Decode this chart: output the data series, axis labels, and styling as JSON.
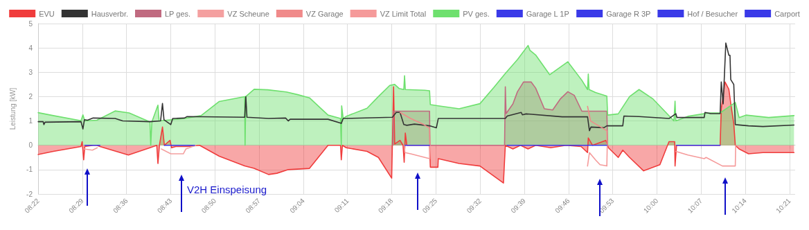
{
  "chart_data": {
    "type": "line",
    "ylabel": "Leistung [kW]",
    "legend": "top",
    "grid": true,
    "marker": "none",
    "line_style": "solid",
    "xlim": [
      8.3667,
      10.365
    ],
    "ylim": [
      -2,
      5
    ],
    "yticks": [
      -2,
      -1,
      0,
      1,
      2,
      3,
      4,
      5
    ],
    "xticks": [
      {
        "value": 8.3667,
        "label": "08:22"
      },
      {
        "value": 8.4833,
        "label": "08:29"
      },
      {
        "value": 8.6,
        "label": "08:36"
      },
      {
        "value": 8.7167,
        "label": "08:43"
      },
      {
        "value": 8.8333,
        "label": "08:50"
      },
      {
        "value": 8.95,
        "label": "08:57"
      },
      {
        "value": 9.0667,
        "label": "09:04"
      },
      {
        "value": 9.1833,
        "label": "09:11"
      },
      {
        "value": 9.3,
        "label": "09:18"
      },
      {
        "value": 9.4167,
        "label": "09:25"
      },
      {
        "value": 9.5333,
        "label": "09:32"
      },
      {
        "value": 9.65,
        "label": "09:39"
      },
      {
        "value": 9.7667,
        "label": "09:46"
      },
      {
        "value": 9.8833,
        "label": "09:53"
      },
      {
        "value": 10.0,
        "label": "10:00"
      },
      {
        "value": 10.1167,
        "label": "10:07"
      },
      {
        "value": 10.2333,
        "label": "10:14"
      },
      {
        "value": 10.35,
        "label": "10:21"
      }
    ],
    "annotations": [
      "V2H Einspeisung"
    ],
    "series": [
      {
        "name": "EVU",
        "type": "area",
        "color": "#f03c3c",
        "x": [
          8.367,
          8.407,
          8.48,
          8.483,
          8.487,
          8.49,
          8.512,
          8.522,
          8.53,
          8.605,
          8.662,
          8.68,
          8.683,
          8.687,
          8.695,
          8.7,
          8.715,
          8.719,
          8.73,
          8.76,
          8.793,
          8.845,
          8.912,
          8.937,
          8.975,
          8.997,
          9.027,
          9.083,
          9.132,
          9.165,
          9.167,
          9.17,
          9.18,
          9.235,
          9.265,
          9.3,
          9.305,
          9.308,
          9.322,
          9.33,
          9.333,
          9.336,
          9.34,
          9.4,
          9.402,
          9.422,
          9.423,
          9.478,
          9.533,
          9.595,
          9.6,
          9.62,
          9.64,
          9.66,
          9.68,
          9.72,
          9.76,
          9.8,
          9.817,
          9.819,
          9.83,
          9.865,
          9.868,
          9.872,
          9.898,
          9.91,
          9.928,
          9.965,
          10.008,
          10.032,
          10.047,
          10.048,
          10.052,
          10.167,
          10.17,
          10.18,
          10.19,
          10.197,
          10.203,
          10.207,
          10.217,
          10.242,
          10.28,
          10.362
        ],
        "values": [
          -0.38,
          -0.25,
          -0.05,
          0.15,
          -0.6,
          -0.05,
          0,
          0,
          -0.05,
          -0.4,
          -0.1,
          0,
          -0.75,
          0,
          0.75,
          0,
          0.2,
          -0.1,
          -0.05,
          -0.05,
          0,
          -0.45,
          -0.85,
          -0.95,
          -1.2,
          -1.15,
          -1.0,
          -0.95,
          0,
          0,
          -0.6,
          0,
          -0.1,
          -0.25,
          -0.5,
          -1.35,
          2.4,
          0.05,
          0.2,
          0,
          -0.7,
          0.5,
          0,
          0,
          -0.9,
          -0.9,
          -0.55,
          -0.75,
          -0.85,
          -1.55,
          0,
          -0.15,
          0,
          -0.15,
          0,
          -0.1,
          0,
          -0.05,
          -0.3,
          0.3,
          0,
          0.2,
          0.1,
          -0.1,
          -0.5,
          -0.2,
          -0.5,
          -1.05,
          -0.8,
          0.15,
          0.15,
          -0.85,
          0,
          0,
          1.5,
          2.6,
          2.3,
          1.5,
          0.9,
          0,
          -0.15,
          -0.35,
          -0.3,
          -0.3
        ]
      },
      {
        "name": "Hausverbr.",
        "color": "#333333",
        "x": [
          8.367,
          8.38,
          8.382,
          8.385,
          8.48,
          8.485,
          8.489,
          8.497,
          8.512,
          8.57,
          8.59,
          8.662,
          8.69,
          8.695,
          8.699,
          8.717,
          8.722,
          8.753,
          8.76,
          8.912,
          8.915,
          8.918,
          8.975,
          9.02,
          9.027,
          9.032,
          9.132,
          9.167,
          9.172,
          9.302,
          9.312,
          9.322,
          9.332,
          9.34,
          9.36,
          9.4,
          9.418,
          9.423,
          9.6,
          9.605,
          9.642,
          9.645,
          9.655,
          9.75,
          9.817,
          9.822,
          9.826,
          9.86,
          9.868,
          9.91,
          9.913,
          9.953,
          10.032,
          10.05,
          10.053,
          10.125,
          10.127,
          10.142,
          10.167,
          10.17,
          10.175,
          10.182,
          10.19,
          10.193,
          10.195,
          10.203,
          10.207,
          10.242,
          10.28,
          10.362
        ],
        "values": [
          0.97,
          0.97,
          0.85,
          0.95,
          0.97,
          0.67,
          1.05,
          1.03,
          1.12,
          1.1,
          1.0,
          0.97,
          1.0,
          1.72,
          1.05,
          0.85,
          1.1,
          1.12,
          1.18,
          1.15,
          2.0,
          1.15,
          1.1,
          1.12,
          1.0,
          1.07,
          1.07,
          0.9,
          1.1,
          1.15,
          1.35,
          1.35,
          0.85,
          0.82,
          0.87,
          0.8,
          0.72,
          1.1,
          1.1,
          1.2,
          1.35,
          1.25,
          1.29,
          1.17,
          1.17,
          0.6,
          0.75,
          0.72,
          0.8,
          0.8,
          1.2,
          1.18,
          1.1,
          1.3,
          1.14,
          1.14,
          1.35,
          1.3,
          1.3,
          2.6,
          1.7,
          4.2,
          3.7,
          3.7,
          2.7,
          2.5,
          0.85,
          0.8,
          0.77,
          0.83
        ]
      },
      {
        "name": "LP ges.",
        "type": "area",
        "color": "#c06a80",
        "x": [
          9.303,
          9.305,
          9.4,
          9.401,
          9.598,
          9.6,
          9.602,
          9.62,
          9.632,
          9.648,
          9.668,
          9.68,
          9.703,
          9.725,
          9.745,
          9.765,
          9.782,
          9.802,
          9.868,
          9.87
        ],
        "values": [
          0,
          1.4,
          1.4,
          0,
          0,
          2.4,
          1.3,
          1.7,
          2.2,
          2.6,
          2.6,
          2.35,
          1.5,
          1.45,
          1.9,
          2.2,
          2.05,
          1.4,
          1.4,
          0
        ]
      },
      {
        "name": "VZ Scheune",
        "color": "#f4a0a0",
        "x": [
          8.488,
          8.51,
          8.523,
          8.6,
          8.692,
          8.717,
          8.75,
          8.757,
          8.783
        ],
        "values": [
          -0.15,
          -0.2,
          -0.1,
          null,
          -0.15,
          -0.35,
          -0.35,
          -0.15,
          0
        ]
      },
      {
        "name": "VZ Garage",
        "color": "#f08a8a",
        "x": [
          9.322,
          9.35,
          9.385,
          9.4,
          9.401,
          9.6,
          9.817,
          9.825,
          9.868,
          9.869
        ],
        "values": [
          1.35,
          1.1,
          0.85,
          0.7,
          0,
          null,
          1.6,
          1.0,
          0.6,
          0
        ]
      },
      {
        "name": "VZ Limit Total",
        "color": "#f59a9a",
        "x": [
          9.333,
          9.335,
          9.35,
          9.4,
          9.401,
          9.5,
          9.817,
          9.822,
          9.838,
          9.85,
          9.868,
          9.869,
          9.95,
          10.05,
          10.082,
          10.125,
          10.13,
          10.173,
          10.207,
          10.208
        ],
        "values": [
          0,
          -0.3,
          -0.35,
          -0.55,
          0,
          null,
          -0.85,
          -0.3,
          -0.6,
          -0.8,
          -0.85,
          0,
          null,
          -0.25,
          -0.4,
          -0.55,
          -0.5,
          -0.85,
          -0.85,
          0
        ]
      },
      {
        "name": "PV ges.",
        "type": "area",
        "color": "#6ee06e",
        "x": [
          8.367,
          8.407,
          8.48,
          8.485,
          8.49,
          8.522,
          8.57,
          8.607,
          8.662,
          8.664,
          8.667,
          8.683,
          8.686,
          8.753,
          8.797,
          8.845,
          8.912,
          8.913,
          8.915,
          8.937,
          8.973,
          9.022,
          9.052,
          9.083,
          9.132,
          9.165,
          9.167,
          9.168,
          9.172,
          9.18,
          9.235,
          9.265,
          9.295,
          9.308,
          9.32,
          9.332,
          9.334,
          9.336,
          9.387,
          9.4,
          9.402,
          9.423,
          9.478,
          9.533,
          9.57,
          9.6,
          9.632,
          9.66,
          9.665,
          9.68,
          9.717,
          9.765,
          9.802,
          9.817,
          9.819,
          9.821,
          9.838,
          9.868,
          9.87,
          9.898,
          9.928,
          9.953,
          9.99,
          10.022,
          10.045,
          10.048,
          10.05,
          10.082,
          10.137,
          10.167,
          10.207,
          10.217,
          10.235,
          10.295,
          10.362
        ],
        "values": [
          1.34,
          1.22,
          1.01,
          1.25,
          1.0,
          1.03,
          1.41,
          1.33,
          0.96,
          0,
          0.96,
          1.65,
          1.0,
          1.1,
          1.22,
          1.8,
          2.0,
          0,
          2.0,
          2.3,
          2.28,
          2.19,
          2.08,
          1.95,
          1.24,
          1.1,
          0,
          1.62,
          1.1,
          1.19,
          1.52,
          2.0,
          2.46,
          2.5,
          2.33,
          2.29,
          2.86,
          2.29,
          2.26,
          2.24,
          1.67,
          1.62,
          1.5,
          1.71,
          2.38,
          2.95,
          3.52,
          4.1,
          3.9,
          3.71,
          2.9,
          3.43,
          2.67,
          2.29,
          2.93,
          2.29,
          2.17,
          2.02,
          1.24,
          1.29,
          2.0,
          2.29,
          1.9,
          1.38,
          1.0,
          1.81,
          1.0,
          1.19,
          1.33,
          1.33,
          1.76,
          1.14,
          1.24,
          1.14,
          1.22
        ]
      },
      {
        "name": "Garage L 1P",
        "color": "#3a3ae8",
        "x": [
          8.49,
          8.53,
          8.54,
          8.7,
          8.78
        ],
        "values": [
          0,
          0,
          null,
          0,
          0
        ]
      },
      {
        "name": "Garage R 3P",
        "color": "#3a3ae8",
        "x": [
          9.335,
          9.4
        ],
        "values": [
          0,
          0
        ]
      },
      {
        "name": "Hof / Besucher",
        "color": "#3a3ae8",
        "x": [
          9.605,
          9.868
        ],
        "values": [
          0,
          0
        ]
      },
      {
        "name": "Carport",
        "color": "#3a3ae8",
        "x": [
          10.052,
          10.167
        ],
        "values": [
          0,
          0
        ]
      }
    ]
  }
}
